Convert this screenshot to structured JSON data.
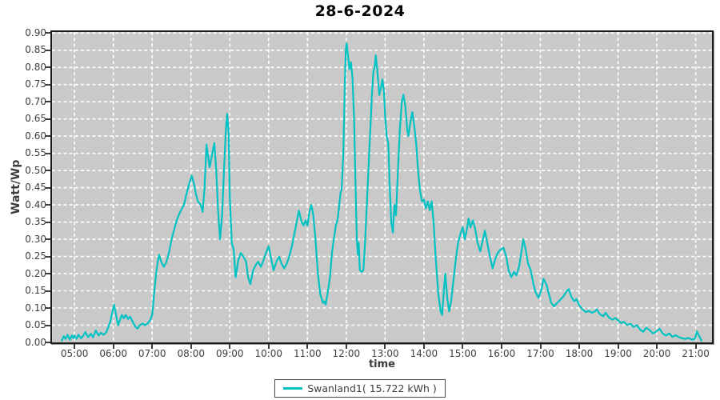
{
  "title": "28-6-2024",
  "axes": {
    "y_label": "Watt/Wp",
    "x_label": "time",
    "y_ticks": [
      "0.90",
      "0.85",
      "0.80",
      "0.75",
      "0.70",
      "0.65",
      "0.60",
      "0.55",
      "0.50",
      "0.45",
      "0.40",
      "0.35",
      "0.30",
      "0.25",
      "0.20",
      "0.15",
      "0.10",
      "0.05",
      "0.00"
    ],
    "x_ticks": [
      "05:00",
      "06:00",
      "07:00",
      "08:00",
      "09:00",
      "10:00",
      "11:00",
      "12:00",
      "13:00",
      "14:00",
      "15:00",
      "16:00",
      "17:00",
      "18:00",
      "19:00",
      "20:00",
      "21:00"
    ]
  },
  "legend": {
    "series_label": "Swanland1( 15.722 kWh )"
  },
  "colors": {
    "line": "#00c2c2",
    "plot_background": "#c9c9c9",
    "grid": "#ffffff",
    "text": "#3d3d3d",
    "title_text": "#050505",
    "plot_border": "#1c1c1c"
  },
  "chart_data": {
    "type": "line",
    "title": "28-6-2024",
    "xlabel": "time",
    "ylabel": "Watt/Wp",
    "x_unit": "hour_of_day",
    "xlim": [
      4.42,
      21.42
    ],
    "ylim": [
      0,
      0.903
    ],
    "y_tick_step": 0.05,
    "x_tick_hours": [
      5,
      6,
      7,
      8,
      9,
      10,
      11,
      12,
      13,
      14,
      15,
      16,
      17,
      18,
      19,
      20,
      21
    ],
    "grid": true,
    "legend_position": "bottom-center",
    "series": [
      {
        "name": "Swanland1( 15.722 kWh )",
        "energy_kwh": 15.722,
        "points": [
          [
            4.67,
            0.005
          ],
          [
            4.72,
            0.018
          ],
          [
            4.77,
            0.01
          ],
          [
            4.82,
            0.022
          ],
          [
            4.88,
            0.008
          ],
          [
            4.93,
            0.02
          ],
          [
            4.97,
            0.012
          ],
          [
            5.0,
            0.02
          ],
          [
            5.05,
            0.01
          ],
          [
            5.1,
            0.022
          ],
          [
            5.17,
            0.012
          ],
          [
            5.23,
            0.02
          ],
          [
            5.28,
            0.03
          ],
          [
            5.35,
            0.015
          ],
          [
            5.42,
            0.025
          ],
          [
            5.48,
            0.015
          ],
          [
            5.55,
            0.035
          ],
          [
            5.62,
            0.02
          ],
          [
            5.68,
            0.028
          ],
          [
            5.75,
            0.022
          ],
          [
            5.82,
            0.03
          ],
          [
            5.87,
            0.045
          ],
          [
            5.92,
            0.06
          ],
          [
            5.97,
            0.085
          ],
          [
            6.02,
            0.11
          ],
          [
            6.07,
            0.08
          ],
          [
            6.12,
            0.05
          ],
          [
            6.17,
            0.065
          ],
          [
            6.22,
            0.08
          ],
          [
            6.27,
            0.07
          ],
          [
            6.32,
            0.08
          ],
          [
            6.38,
            0.068
          ],
          [
            6.43,
            0.075
          ],
          [
            6.5,
            0.06
          ],
          [
            6.57,
            0.045
          ],
          [
            6.62,
            0.04
          ],
          [
            6.68,
            0.05
          ],
          [
            6.75,
            0.055
          ],
          [
            6.82,
            0.05
          ],
          [
            6.88,
            0.055
          ],
          [
            6.95,
            0.065
          ],
          [
            7.0,
            0.08
          ],
          [
            7.05,
            0.14
          ],
          [
            7.1,
            0.2
          ],
          [
            7.15,
            0.24
          ],
          [
            7.18,
            0.255
          ],
          [
            7.23,
            0.235
          ],
          [
            7.3,
            0.22
          ],
          [
            7.37,
            0.235
          ],
          [
            7.43,
            0.26
          ],
          [
            7.5,
            0.3
          ],
          [
            7.57,
            0.33
          ],
          [
            7.63,
            0.355
          ],
          [
            7.7,
            0.375
          ],
          [
            7.77,
            0.39
          ],
          [
            7.82,
            0.4
          ],
          [
            7.88,
            0.43
          ],
          [
            7.95,
            0.46
          ],
          [
            8.02,
            0.485
          ],
          [
            8.08,
            0.46
          ],
          [
            8.13,
            0.43
          ],
          [
            8.18,
            0.41
          ],
          [
            8.25,
            0.4
          ],
          [
            8.3,
            0.38
          ],
          [
            8.35,
            0.45
          ],
          [
            8.4,
            0.575
          ],
          [
            8.48,
            0.51
          ],
          [
            8.55,
            0.55
          ],
          [
            8.6,
            0.58
          ],
          [
            8.65,
            0.5
          ],
          [
            8.7,
            0.38
          ],
          [
            8.75,
            0.3
          ],
          [
            8.8,
            0.37
          ],
          [
            8.85,
            0.5
          ],
          [
            8.9,
            0.62
          ],
          [
            8.93,
            0.665
          ],
          [
            8.97,
            0.61
          ],
          [
            9.0,
            0.42
          ],
          [
            9.05,
            0.29
          ],
          [
            9.1,
            0.27
          ],
          [
            9.15,
            0.19
          ],
          [
            9.22,
            0.24
          ],
          [
            9.28,
            0.26
          ],
          [
            9.35,
            0.25
          ],
          [
            9.42,
            0.235
          ],
          [
            9.47,
            0.19
          ],
          [
            9.53,
            0.17
          ],
          [
            9.6,
            0.21
          ],
          [
            9.67,
            0.225
          ],
          [
            9.73,
            0.235
          ],
          [
            9.8,
            0.22
          ],
          [
            9.87,
            0.24
          ],
          [
            9.93,
            0.26
          ],
          [
            10.0,
            0.28
          ],
          [
            10.07,
            0.24
          ],
          [
            10.13,
            0.21
          ],
          [
            10.2,
            0.235
          ],
          [
            10.27,
            0.25
          ],
          [
            10.33,
            0.23
          ],
          [
            10.4,
            0.215
          ],
          [
            10.47,
            0.23
          ],
          [
            10.53,
            0.25
          ],
          [
            10.6,
            0.28
          ],
          [
            10.67,
            0.32
          ],
          [
            10.73,
            0.355
          ],
          [
            10.78,
            0.383
          ],
          [
            10.85,
            0.35
          ],
          [
            10.9,
            0.34
          ],
          [
            10.95,
            0.355
          ],
          [
            11.0,
            0.34
          ],
          [
            11.05,
            0.38
          ],
          [
            11.1,
            0.4
          ],
          [
            11.15,
            0.37
          ],
          [
            11.2,
            0.31
          ],
          [
            11.27,
            0.2
          ],
          [
            11.33,
            0.14
          ],
          [
            11.4,
            0.115
          ],
          [
            11.43,
            0.12
          ],
          [
            11.47,
            0.11
          ],
          [
            11.53,
            0.15
          ],
          [
            11.58,
            0.19
          ],
          [
            11.63,
            0.26
          ],
          [
            11.68,
            0.3
          ],
          [
            11.73,
            0.34
          ],
          [
            11.78,
            0.36
          ],
          [
            11.82,
            0.4
          ],
          [
            11.85,
            0.435
          ],
          [
            11.88,
            0.445
          ],
          [
            11.92,
            0.54
          ],
          [
            11.95,
            0.68
          ],
          [
            11.97,
            0.79
          ],
          [
            11.99,
            0.855
          ],
          [
            12.01,
            0.87
          ],
          [
            12.04,
            0.84
          ],
          [
            12.08,
            0.795
          ],
          [
            12.12,
            0.815
          ],
          [
            12.16,
            0.77
          ],
          [
            12.2,
            0.65
          ],
          [
            12.24,
            0.45
          ],
          [
            12.27,
            0.3
          ],
          [
            12.3,
            0.255
          ],
          [
            12.32,
            0.29
          ],
          [
            12.35,
            0.21
          ],
          [
            12.4,
            0.205
          ],
          [
            12.44,
            0.21
          ],
          [
            12.48,
            0.28
          ],
          [
            12.52,
            0.38
          ],
          [
            12.57,
            0.5
          ],
          [
            12.62,
            0.62
          ],
          [
            12.66,
            0.72
          ],
          [
            12.7,
            0.79
          ],
          [
            12.73,
            0.8
          ],
          [
            12.76,
            0.835
          ],
          [
            12.8,
            0.79
          ],
          [
            12.85,
            0.72
          ],
          [
            12.9,
            0.745
          ],
          [
            12.93,
            0.765
          ],
          [
            12.97,
            0.73
          ],
          [
            13.0,
            0.66
          ],
          [
            13.04,
            0.6
          ],
          [
            13.08,
            0.58
          ],
          [
            13.12,
            0.45
          ],
          [
            13.16,
            0.35
          ],
          [
            13.2,
            0.32
          ],
          [
            13.24,
            0.4
          ],
          [
            13.28,
            0.37
          ],
          [
            13.33,
            0.5
          ],
          [
            13.38,
            0.62
          ],
          [
            13.43,
            0.7
          ],
          [
            13.47,
            0.72
          ],
          [
            13.52,
            0.69
          ],
          [
            13.57,
            0.62
          ],
          [
            13.6,
            0.6
          ],
          [
            13.65,
            0.64
          ],
          [
            13.7,
            0.67
          ],
          [
            13.75,
            0.63
          ],
          [
            13.8,
            0.58
          ],
          [
            13.85,
            0.5
          ],
          [
            13.9,
            0.44
          ],
          [
            13.95,
            0.41
          ],
          [
            14.0,
            0.415
          ],
          [
            14.05,
            0.39
          ],
          [
            14.1,
            0.41
          ],
          [
            14.15,
            0.385
          ],
          [
            14.2,
            0.41
          ],
          [
            14.25,
            0.35
          ],
          [
            14.3,
            0.25
          ],
          [
            14.37,
            0.14
          ],
          [
            14.43,
            0.09
          ],
          [
            14.47,
            0.08
          ],
          [
            14.52,
            0.16
          ],
          [
            14.55,
            0.2
          ],
          [
            14.6,
            0.13
          ],
          [
            14.65,
            0.09
          ],
          [
            14.7,
            0.12
          ],
          [
            14.75,
            0.17
          ],
          [
            14.82,
            0.24
          ],
          [
            14.88,
            0.29
          ],
          [
            14.95,
            0.32
          ],
          [
            15.0,
            0.335
          ],
          [
            15.05,
            0.3
          ],
          [
            15.1,
            0.325
          ],
          [
            15.15,
            0.36
          ],
          [
            15.2,
            0.335
          ],
          [
            15.26,
            0.355
          ],
          [
            15.32,
            0.33
          ],
          [
            15.38,
            0.29
          ],
          [
            15.45,
            0.265
          ],
          [
            15.52,
            0.3
          ],
          [
            15.57,
            0.325
          ],
          [
            15.63,
            0.29
          ],
          [
            15.7,
            0.25
          ],
          [
            15.77,
            0.215
          ],
          [
            15.83,
            0.24
          ],
          [
            15.9,
            0.26
          ],
          [
            15.97,
            0.27
          ],
          [
            16.05,
            0.275
          ],
          [
            16.12,
            0.25
          ],
          [
            16.18,
            0.21
          ],
          [
            16.25,
            0.19
          ],
          [
            16.32,
            0.205
          ],
          [
            16.38,
            0.195
          ],
          [
            16.45,
            0.22
          ],
          [
            16.52,
            0.27
          ],
          [
            16.56,
            0.3
          ],
          [
            16.62,
            0.27
          ],
          [
            16.68,
            0.23
          ],
          [
            16.75,
            0.21
          ],
          [
            16.82,
            0.17
          ],
          [
            16.88,
            0.145
          ],
          [
            16.95,
            0.13
          ],
          [
            17.02,
            0.15
          ],
          [
            17.08,
            0.185
          ],
          [
            17.15,
            0.17
          ],
          [
            17.22,
            0.14
          ],
          [
            17.28,
            0.115
          ],
          [
            17.35,
            0.105
          ],
          [
            17.43,
            0.115
          ],
          [
            17.52,
            0.125
          ],
          [
            17.6,
            0.135
          ],
          [
            17.67,
            0.148
          ],
          [
            17.73,
            0.155
          ],
          [
            17.8,
            0.132
          ],
          [
            17.87,
            0.12
          ],
          [
            17.93,
            0.126
          ],
          [
            18.0,
            0.108
          ],
          [
            18.08,
            0.097
          ],
          [
            18.17,
            0.088
          ],
          [
            18.25,
            0.092
          ],
          [
            18.33,
            0.086
          ],
          [
            18.4,
            0.09
          ],
          [
            18.45,
            0.096
          ],
          [
            18.53,
            0.082
          ],
          [
            18.62,
            0.076
          ],
          [
            18.68,
            0.086
          ],
          [
            18.77,
            0.072
          ],
          [
            18.85,
            0.066
          ],
          [
            18.93,
            0.071
          ],
          [
            19.0,
            0.064
          ],
          [
            19.08,
            0.056
          ],
          [
            19.15,
            0.06
          ],
          [
            19.23,
            0.051
          ],
          [
            19.32,
            0.054
          ],
          [
            19.4,
            0.045
          ],
          [
            19.48,
            0.05
          ],
          [
            19.57,
            0.037
          ],
          [
            19.65,
            0.031
          ],
          [
            19.73,
            0.043
          ],
          [
            19.82,
            0.035
          ],
          [
            19.9,
            0.026
          ],
          [
            19.98,
            0.031
          ],
          [
            20.07,
            0.04
          ],
          [
            20.15,
            0.026
          ],
          [
            20.23,
            0.02
          ],
          [
            20.32,
            0.026
          ],
          [
            20.4,
            0.016
          ],
          [
            20.48,
            0.021
          ],
          [
            20.57,
            0.015
          ],
          [
            20.65,
            0.012
          ],
          [
            20.73,
            0.01
          ],
          [
            20.82,
            0.013
          ],
          [
            20.9,
            0.008
          ],
          [
            20.98,
            0.01
          ],
          [
            21.03,
            0.032
          ],
          [
            21.1,
            0.016
          ],
          [
            21.15,
            0.005
          ]
        ]
      }
    ]
  }
}
